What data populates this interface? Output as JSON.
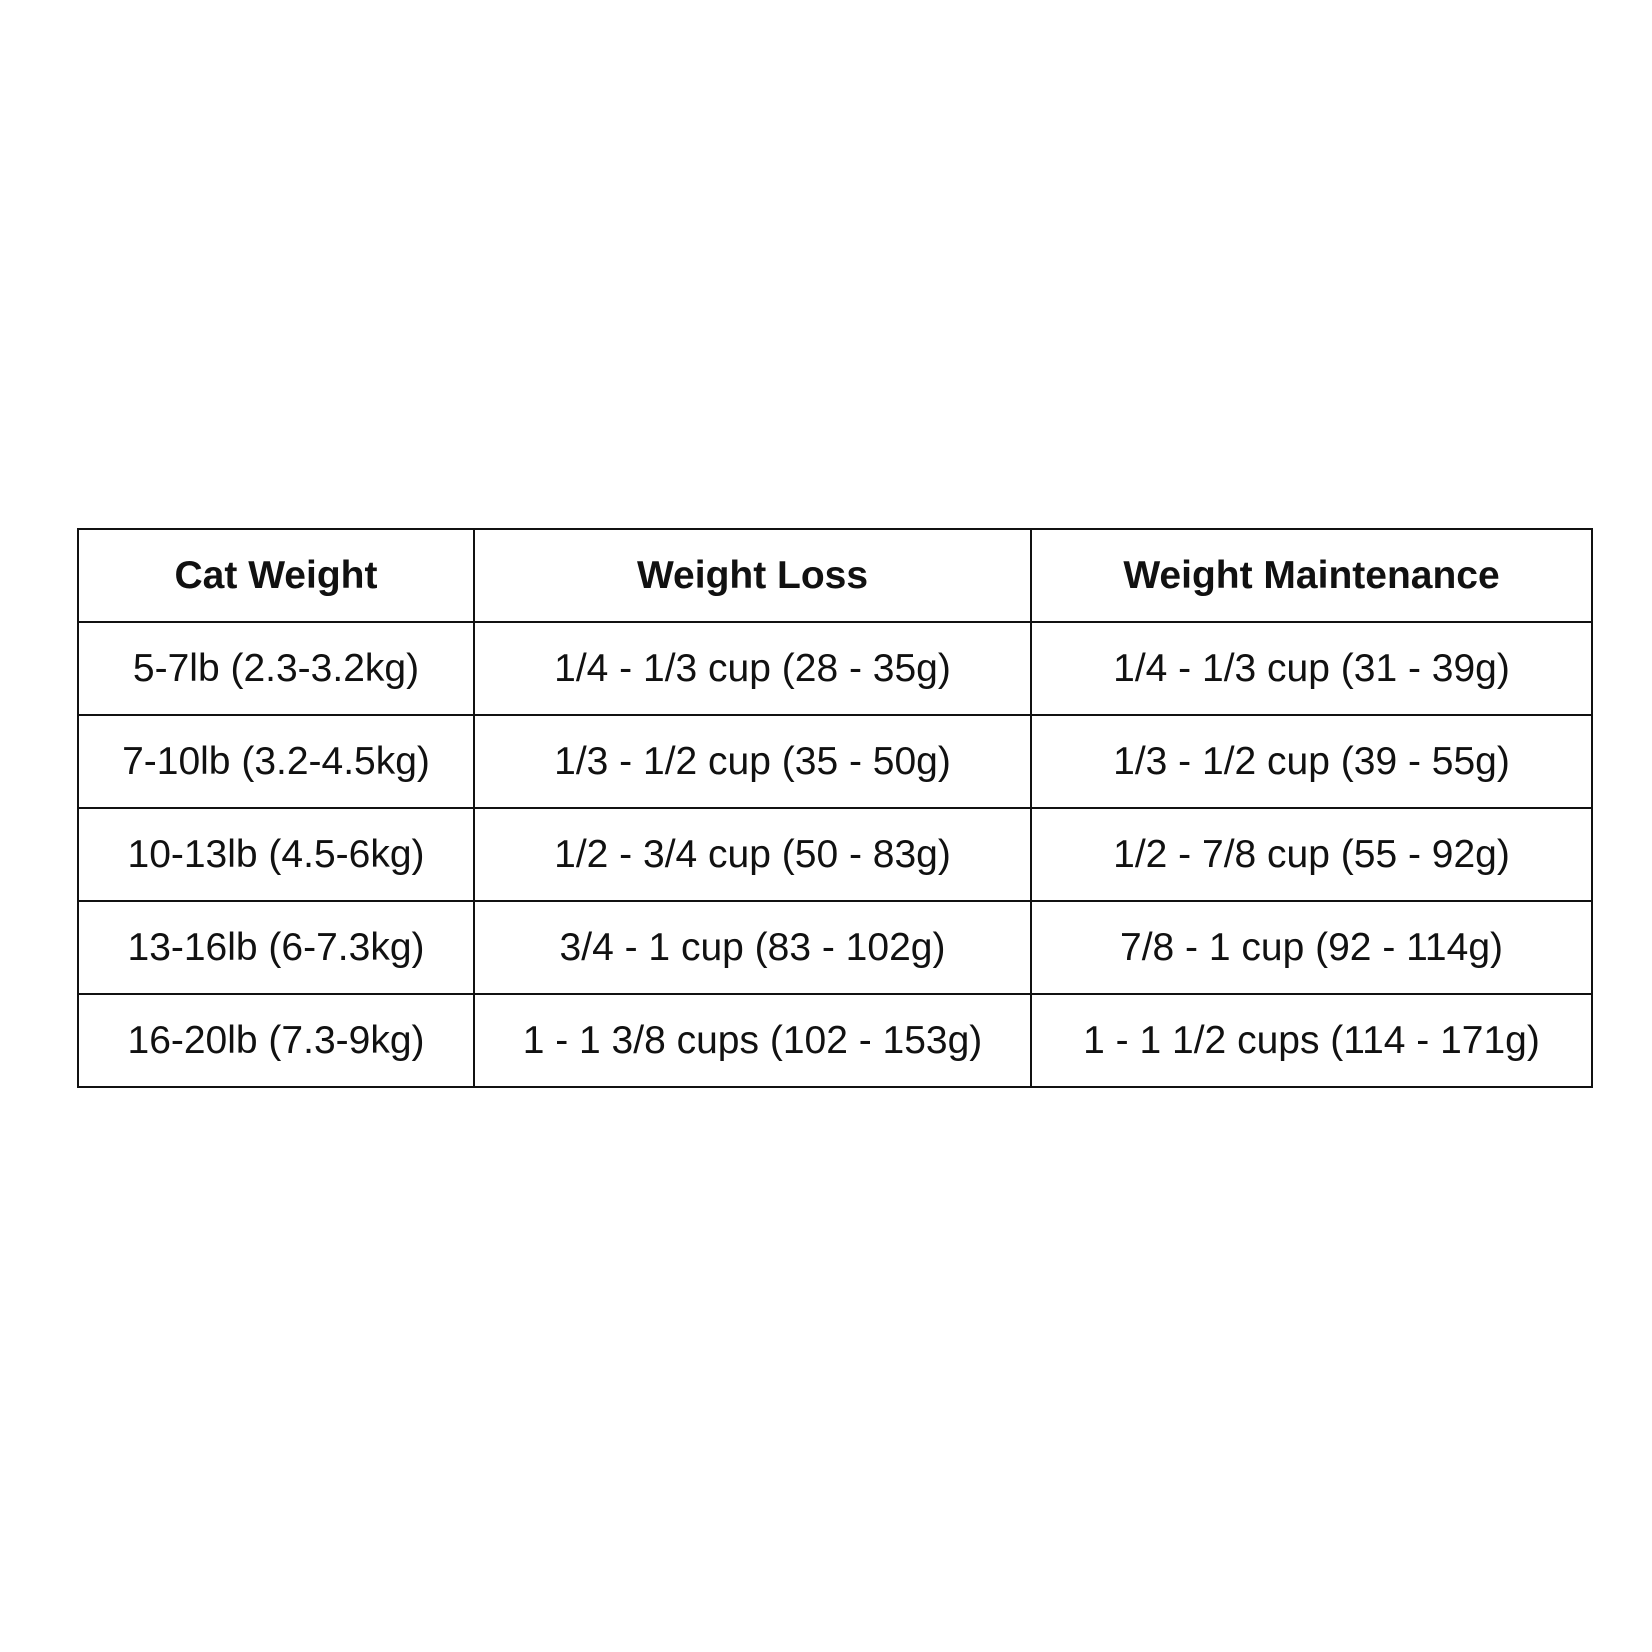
{
  "table": {
    "headers": [
      "Cat Weight",
      "Weight Loss",
      "Weight Maintenance"
    ],
    "rows": [
      [
        "5-7lb (2.3-3.2kg)",
        "1/4 - 1/3 cup (28 - 35g)",
        "1/4 - 1/3 cup (31 - 39g)"
      ],
      [
        "7-10lb (3.2-4.5kg)",
        "1/3 - 1/2 cup (35 - 50g)",
        "1/3 - 1/2 cup (39 - 55g)"
      ],
      [
        "10-13lb (4.5-6kg)",
        "1/2 - 3/4 cup (50 - 83g)",
        "1/2 - 7/8 cup (55 - 92g)"
      ],
      [
        "13-16lb (6-7.3kg)",
        "3/4 - 1 cup (83 - 102g)",
        "7/8 - 1 cup (92 - 114g)"
      ],
      [
        "16-20lb (7.3-9kg)",
        "1 - 1 3/8 cups (102 - 153g)",
        "1 - 1 1/2 cups (114 - 171g)"
      ]
    ]
  }
}
